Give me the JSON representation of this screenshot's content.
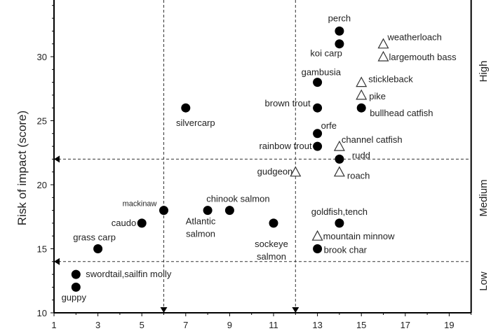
{
  "chart_data": {
    "type": "scatter",
    "title": "",
    "xlabel": "",
    "ylabel": "Risk of impact (score)",
    "xlim": [
      1,
      20
    ],
    "ylim": [
      10,
      34.4
    ],
    "x_ticks": [
      1,
      3,
      5,
      7,
      9,
      11,
      13,
      15,
      17,
      19
    ],
    "y_ticks": [
      10,
      15,
      20,
      25,
      30
    ],
    "zone_labels": [
      "High",
      "Medium",
      "Low"
    ],
    "thresholds": {
      "x": [
        6,
        12
      ],
      "y": [
        22,
        14
      ]
    },
    "marker_legend": {
      "circle": "filled circle",
      "triangle": "open triangle"
    },
    "points": [
      {
        "label": [
          "perch"
        ],
        "x": 14,
        "y": 32,
        "marker": "circle"
      },
      {
        "label": [
          "koi carp"
        ],
        "x": 14,
        "y": 31,
        "marker": "circle"
      },
      {
        "label": [
          "gambusia"
        ],
        "x": 13,
        "y": 28,
        "marker": "circle"
      },
      {
        "label": [
          "brown trout"
        ],
        "x": 13,
        "y": 26,
        "marker": "circle"
      },
      {
        "label": [
          "orfe"
        ],
        "x": 13,
        "y": 24,
        "marker": "circle"
      },
      {
        "label": [
          "rainbow trout"
        ],
        "x": 13,
        "y": 23,
        "marker": "circle"
      },
      {
        "label": [
          "channel catfish"
        ],
        "x": 14,
        "y": 23,
        "marker": "triangle"
      },
      {
        "label": [
          "rudd"
        ],
        "x": 14,
        "y": 22,
        "marker": "circle"
      },
      {
        "label": [
          "roach"
        ],
        "x": 14,
        "y": 21,
        "marker": "triangle"
      },
      {
        "label": [
          "gudgeon"
        ],
        "x": 12,
        "y": 21,
        "marker": "triangle"
      },
      {
        "label": [
          "weatherloach"
        ],
        "x": 16,
        "y": 31,
        "marker": "triangle"
      },
      {
        "label": [
          "largemouth bass"
        ],
        "x": 16,
        "y": 30,
        "marker": "triangle"
      },
      {
        "label": [
          "stickleback"
        ],
        "x": 15,
        "y": 28,
        "marker": "triangle"
      },
      {
        "label": [
          "pike"
        ],
        "x": 15,
        "y": 27,
        "marker": "triangle"
      },
      {
        "label": [
          "bullhead catfish"
        ],
        "x": 15,
        "y": 26,
        "marker": "circle"
      },
      {
        "label": [
          "silvercarp"
        ],
        "x": 7,
        "y": 26,
        "marker": "circle"
      },
      {
        "label": [
          "mackinaw"
        ],
        "x": 6,
        "y": 18,
        "marker": "circle"
      },
      {
        "label": [
          "caudo"
        ],
        "x": 5,
        "y": 17,
        "marker": "circle"
      },
      {
        "label": [
          "Atlantic",
          "salmon"
        ],
        "x": 8,
        "y": 18,
        "marker": "circle"
      },
      {
        "label": [
          "chinook salmon"
        ],
        "x": 9,
        "y": 18,
        "marker": "circle"
      },
      {
        "label": [
          "sockeye",
          "salmon"
        ],
        "x": 11,
        "y": 17,
        "marker": "circle"
      },
      {
        "label": [
          "goldfish,tench"
        ],
        "x": 14,
        "y": 17,
        "marker": "circle"
      },
      {
        "label": [
          "mountain minnow"
        ],
        "x": 13,
        "y": 16,
        "marker": "triangle"
      },
      {
        "label": [
          "brook char"
        ],
        "x": 13,
        "y": 15,
        "marker": "circle"
      },
      {
        "label": [
          "grass carp"
        ],
        "x": 3,
        "y": 15,
        "marker": "circle"
      },
      {
        "label": [
          "swordtail,sailfin molly"
        ],
        "x": 2,
        "y": 13,
        "marker": "circle"
      },
      {
        "label": [
          "guppy"
        ],
        "x": 2,
        "y": 12,
        "marker": "circle"
      }
    ]
  }
}
